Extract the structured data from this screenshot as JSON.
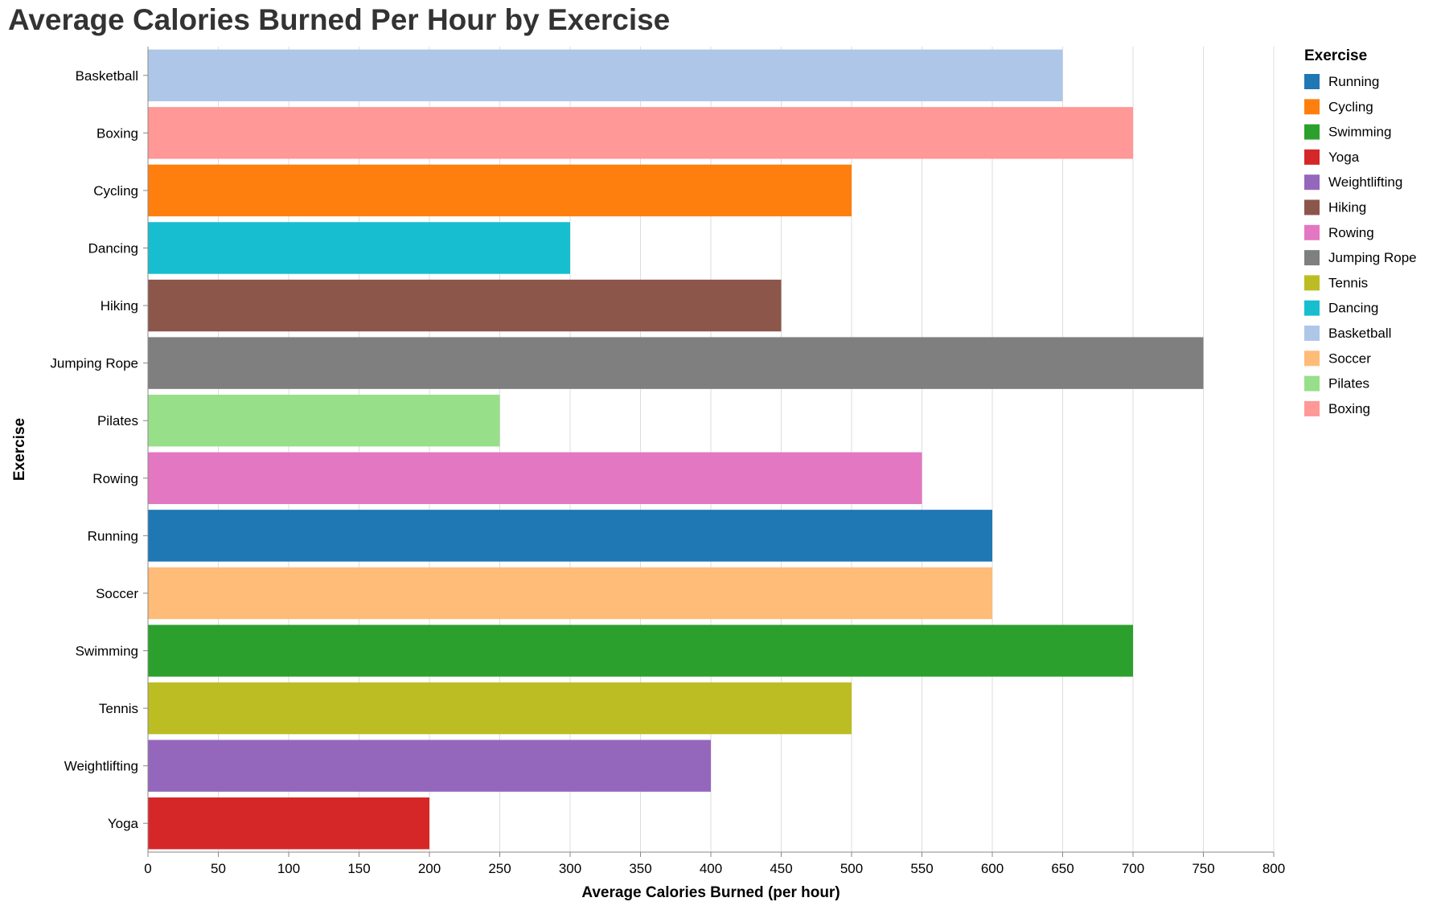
{
  "chart_data": {
    "type": "bar",
    "orientation": "horizontal",
    "title": "Average Calories Burned Per Hour by Exercise",
    "xlabel": "Average Calories Burned (per hour)",
    "ylabel": "Exercise",
    "xlim": [
      0,
      800
    ],
    "x_ticks": [
      "0",
      "50",
      "100",
      "150",
      "200",
      "250",
      "300",
      "350",
      "400",
      "450",
      "500",
      "550",
      "600",
      "650",
      "700",
      "750",
      "800"
    ],
    "grid": true,
    "categories": [
      "Basketball",
      "Boxing",
      "Cycling",
      "Dancing",
      "Hiking",
      "Jumping Rope",
      "Pilates",
      "Rowing",
      "Running",
      "Soccer",
      "Swimming",
      "Tennis",
      "Weightlifting",
      "Yoga"
    ],
    "values": [
      650,
      700,
      500,
      300,
      450,
      750,
      250,
      550,
      600,
      600,
      700,
      500,
      400,
      200
    ],
    "colors": {
      "Running": "#1f77b4",
      "Cycling": "#ff7f0e",
      "Swimming": "#2ca02c",
      "Yoga": "#d62728",
      "Weightlifting": "#9467bd",
      "Hiking": "#8c564b",
      "Rowing": "#e377c2",
      "Jumping Rope": "#7f7f7f",
      "Tennis": "#bcbd22",
      "Dancing": "#17becf",
      "Basketball": "#aec7e8",
      "Soccer": "#ffbb78",
      "Pilates": "#98df8a",
      "Boxing": "#ff9896"
    },
    "legend": {
      "title": "Exercise",
      "position": "right",
      "items": [
        "Running",
        "Cycling",
        "Swimming",
        "Yoga",
        "Weightlifting",
        "Hiking",
        "Rowing",
        "Jumping Rope",
        "Tennis",
        "Dancing",
        "Basketball",
        "Soccer",
        "Pilates",
        "Boxing"
      ]
    }
  }
}
